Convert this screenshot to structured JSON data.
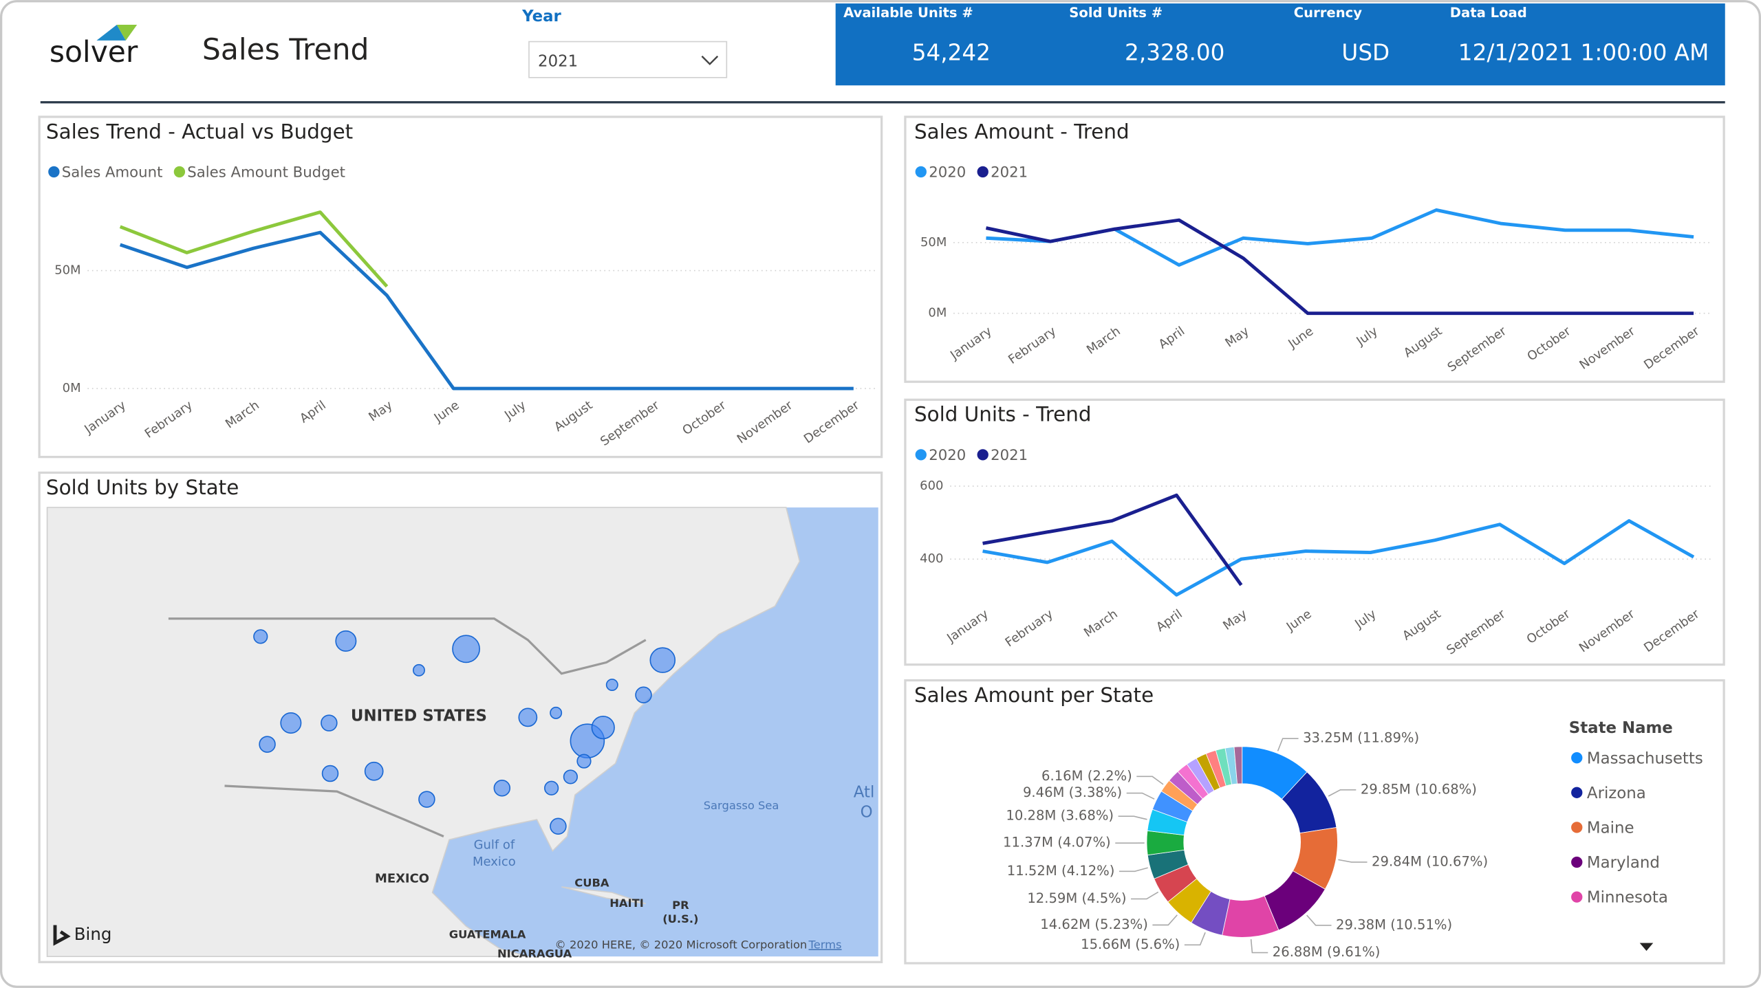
{
  "header": {
    "logo": "solver",
    "title": "Sales Trend",
    "slicer_label": "Year",
    "slicer_value": "2021"
  },
  "kpis": [
    {
      "label": "Available Units #",
      "value": "54,242"
    },
    {
      "label": "Sold Units #",
      "value": "2,328.00"
    },
    {
      "label": "Currency",
      "value": "USD"
    },
    {
      "label": "Data Load",
      "value": "12/1/2021 1:00:00 AM"
    }
  ],
  "chart_data": [
    {
      "type": "line",
      "title": "Sales Trend - Actual vs Budget",
      "categories": [
        "January",
        "February",
        "March",
        "April",
        "May",
        "June",
        "July",
        "August",
        "September",
        "October",
        "November",
        "December"
      ],
      "series": [
        {
          "name": "Sales Amount",
          "color": "#1a73c7",
          "values": [
            61,
            51.4,
            59.5,
            66.2,
            39.5,
            0,
            0,
            0,
            0,
            0,
            0,
            0
          ]
        },
        {
          "name": "Sales Amount Budget",
          "color": "#8cc83c",
          "values": [
            68.6,
            57.6,
            66.7,
            74.8,
            43.3,
            null,
            null,
            null,
            null,
            null,
            null,
            null
          ]
        }
      ],
      "ylim": [
        0,
        80
      ],
      "yticks": [
        {
          "value": 0,
          "label": "0M"
        },
        {
          "value": 50,
          "label": "50M"
        }
      ],
      "grid": true
    },
    {
      "type": "line",
      "title": "Sales Amount - Trend",
      "categories": [
        "January",
        "February",
        "March",
        "April",
        "May",
        "June",
        "July",
        "August",
        "September",
        "October",
        "November",
        "December"
      ],
      "series": [
        {
          "name": "2020",
          "color": "#2196f3",
          "values": [
            53.2,
            50.8,
            59.5,
            34.1,
            53.2,
            49.2,
            53.2,
            73,
            63.5,
            58.7,
            58.7,
            54
          ]
        },
        {
          "name": "2021",
          "color": "#1a1f8f",
          "values": [
            60.3,
            50.8,
            59.5,
            65.9,
            38.9,
            0,
            0,
            0,
            0,
            0,
            0,
            0
          ]
        }
      ],
      "ylim": [
        0,
        75
      ],
      "yticks": [
        {
          "value": 0,
          "label": "0M"
        },
        {
          "value": 50,
          "label": "50M"
        }
      ],
      "grid": true
    },
    {
      "type": "line",
      "title": "Sold Units - Trend",
      "categories": [
        "January",
        "February",
        "March",
        "April",
        "May",
        "June",
        "July",
        "August",
        "September",
        "October",
        "November",
        "December"
      ],
      "series": [
        {
          "name": "2020",
          "color": "#2196f3",
          "values": [
            422,
            391,
            449,
            302,
            400,
            422,
            418,
            452,
            495,
            388,
            505,
            406
          ]
        },
        {
          "name": "2021",
          "color": "#1a1f8f",
          "values": [
            443,
            474,
            505,
            575,
            329,
            null,
            null,
            null,
            null,
            null,
            null,
            null
          ]
        }
      ],
      "ylim": [
        290,
        610
      ],
      "yticks": [
        400,
        600
      ],
      "grid": true
    },
    {
      "type": "pie",
      "title": "Sales Amount per State",
      "legend_title": "State Name",
      "donut": true,
      "categories": [
        "Massachusetts",
        "Arizona",
        "Maine",
        "Maryland",
        "Minnesota",
        null,
        null,
        null,
        null,
        null,
        null,
        null,
        null,
        null,
        null,
        null,
        null,
        null,
        null,
        null,
        null
      ],
      "values": [
        33.25,
        29.85,
        29.84,
        29.38,
        26.88,
        15.66,
        14.62,
        12.59,
        11.52,
        11.37,
        10.28,
        9.46,
        6.16,
        5.8,
        5.5,
        5.2,
        5.0,
        4.8,
        4.5,
        4.2,
        3.76
      ],
      "value_labels": [
        "33.25M (11.89%)",
        "29.85M (10.68%)",
        "29.84M (10.67%)",
        "29.38M (10.51%)",
        "26.88M (9.61%)",
        "15.66M (5.6%)",
        "14.62M (5.23%)",
        "12.59M (4.5%)",
        "11.52M (4.12%)",
        "11.37M (4.07%)",
        "10.28M (3.68%)",
        "9.46M (3.38%)",
        "6.16M (2.2%)",
        null,
        null,
        null,
        null,
        null,
        null,
        null,
        null
      ],
      "colors": [
        "#118dff",
        "#12239e",
        "#e66c37",
        "#6b007b",
        "#e044a7",
        "#744ec2",
        "#d9b300",
        "#d64550",
        "#197278",
        "#1aab40",
        "#15c6f4",
        "#4092ff",
        "#ffa058",
        "#be5dc9",
        "#f472d0",
        "#b5a1ff",
        "#c4a200",
        "#ff8080",
        "#6fdfbd",
        "#8ad4eb",
        "#a66999"
      ]
    }
  ],
  "map": {
    "title": "Sold Units by State",
    "labels": [
      "UNITED STATES",
      "MEXICO",
      "Gulf of",
      "Mexico",
      "Sargasso Sea",
      "CUBA",
      "HAITI",
      "PR",
      "(U.S.)",
      "GUATEMALA",
      "NICARAGUA",
      "Atl",
      "O"
    ],
    "provider": "Bing",
    "copyright": "© 2020 HERE, © 2020 Microsoft Corporation",
    "terms": "Terms"
  }
}
